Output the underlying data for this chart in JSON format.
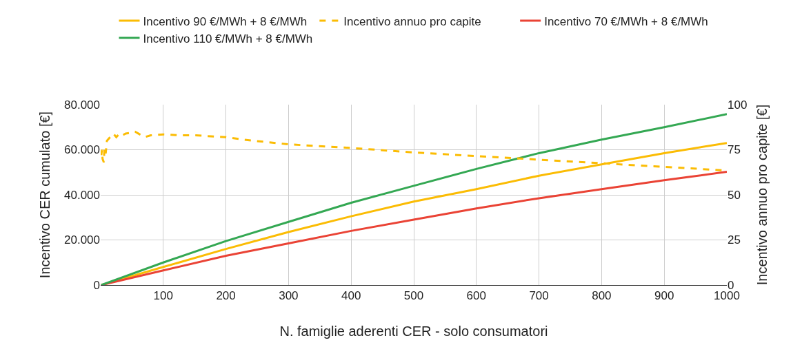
{
  "chart_data": {
    "type": "line",
    "xlabel": "N. famiglie aderenti CER - solo consumatori",
    "ylabel": "Incentivo CER cumulato [€]",
    "y2label": "Incentivo annuo pro capite [€]",
    "x": [
      1,
      100,
      200,
      300,
      400,
      500,
      600,
      700,
      800,
      900,
      1000
    ],
    "series": [
      {
        "name": "Incentivo 90 €/MWh + 8 €/MWh",
        "color": "#fbbc04",
        "values": [
          0,
          8000,
          16000,
          23500,
          30500,
          37000,
          42500,
          48500,
          53500,
          58500,
          63000
        ]
      },
      {
        "name": "Incentivo annuo pro capite",
        "color": "#fbbc04",
        "axis": "y2",
        "line_style": "dashed",
        "x": [
          1,
          2,
          3,
          5,
          6,
          8,
          10,
          15,
          20,
          25,
          30,
          35,
          40,
          50,
          55,
          60,
          70,
          80,
          100,
          130,
          150,
          200,
          230,
          300,
          400,
          500,
          600,
          700,
          800,
          900,
          1000
        ],
        "values": [
          72,
          75,
          70,
          68,
          76,
          73,
          80,
          82,
          84,
          82,
          84,
          83,
          84,
          84.5,
          85,
          84,
          82,
          83,
          83.5,
          83,
          83,
          82,
          80.5,
          78,
          76,
          73.5,
          71.5,
          69.5,
          67.5,
          65.5,
          63.5
        ]
      },
      {
        "name": "Incentivo 70 €/MWh + 8 €/MWh",
        "color": "#ea4335",
        "values": [
          0,
          6500,
          13000,
          18500,
          24000,
          29000,
          34000,
          38500,
          42500,
          46500,
          50200
        ]
      },
      {
        "name": "Incentivo 110 €/MWh + 8 €/MWh",
        "color": "#34a853",
        "values": [
          0,
          10000,
          19500,
          28000,
          36500,
          44000,
          51500,
          58500,
          64500,
          70000,
          75800
        ]
      }
    ],
    "xlim": [
      0,
      1000
    ],
    "xticks": [
      100,
      200,
      300,
      400,
      500,
      600,
      700,
      800,
      900,
      1000
    ],
    "ylim": [
      0,
      80000
    ],
    "yticks": [
      0,
      {
        "value": 20000,
        "label": "20.000"
      },
      {
        "value": 40000,
        "label": "40.000"
      },
      {
        "value": 60000,
        "label": "60.000"
      },
      {
        "value": 80000,
        "label": "80.000"
      }
    ],
    "y2lim": [
      0,
      100
    ],
    "y2ticks": [
      0,
      25,
      50,
      75,
      100
    ],
    "grid": true,
    "legend": "top",
    "line_style": "solid"
  }
}
